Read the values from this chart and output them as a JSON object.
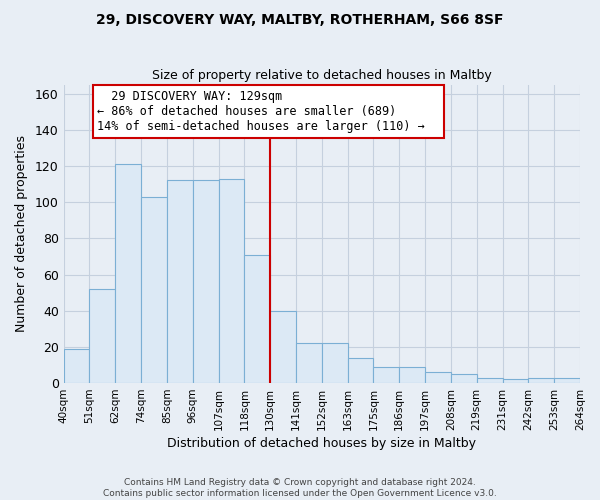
{
  "title1": "29, DISCOVERY WAY, MALTBY, ROTHERHAM, S66 8SF",
  "title2": "Size of property relative to detached houses in Maltby",
  "xlabel": "Distribution of detached houses by size in Maltby",
  "ylabel": "Number of detached properties",
  "bar_labels": [
    "40sqm",
    "51sqm",
    "62sqm",
    "74sqm",
    "85sqm",
    "96sqm",
    "107sqm",
    "118sqm",
    "130sqm",
    "141sqm",
    "152sqm",
    "163sqm",
    "175sqm",
    "186sqm",
    "197sqm",
    "208sqm",
    "219sqm",
    "231sqm",
    "242sqm",
    "253sqm",
    "264sqm"
  ],
  "bar_values": [
    19,
    52,
    121,
    103,
    112,
    112,
    113,
    71,
    40,
    22,
    22,
    14,
    9,
    9,
    6,
    5,
    3,
    2,
    3,
    3
  ],
  "bar_color": "#dce9f5",
  "bar_edge_color": "#7bafd4",
  "vline_x": 8,
  "vline_color": "#cc0000",
  "annotation_title": "29 DISCOVERY WAY: 129sqm",
  "annotation_line1": "← 86% of detached houses are smaller (689)",
  "annotation_line2": "14% of semi-detached houses are larger (110) →",
  "annotation_box_edge": "#cc0000",
  "ylim": [
    0,
    165
  ],
  "yticks": [
    0,
    20,
    40,
    60,
    80,
    100,
    120,
    140,
    160
  ],
  "footer1": "Contains HM Land Registry data © Crown copyright and database right 2024.",
  "footer2": "Contains public sector information licensed under the Open Government Licence v3.0.",
  "bg_color": "#e8eef5",
  "grid_color": "#c5d0de"
}
